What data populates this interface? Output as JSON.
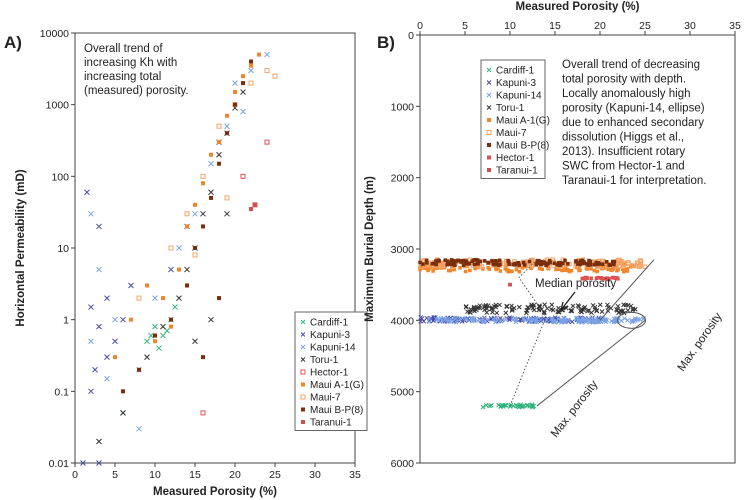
{
  "chart_data": [
    {
      "panel_label": "A)",
      "type": "scatter",
      "xlabel": "Measured Porosity (%)",
      "ylabel": "Horizontal Permeability (mD)",
      "xlim": [
        0,
        35
      ],
      "ylim": [
        0.01,
        10000
      ],
      "yscale": "log",
      "xticks": [
        "0",
        "5",
        "10",
        "15",
        "20",
        "25",
        "30",
        "35"
      ],
      "yticks": [
        "0.01",
        "0.1",
        "1",
        "10",
        "100",
        "1000",
        "10000"
      ],
      "annotation": [
        "Overall trend of",
        "increasing Kh with",
        "increasing total",
        "(measured) porosity."
      ],
      "legend_position": "bottom-right",
      "series": [
        {
          "name": "Cardiff-1",
          "color": "#2fb57c",
          "marker": "x",
          "points": [
            [
              9,
              0.5
            ],
            [
              10,
              0.8
            ],
            [
              11,
              0.6
            ],
            [
              12,
              1
            ],
            [
              10.5,
              0.4
            ],
            [
              11.5,
              0.7
            ],
            [
              9.5,
              0.6
            ],
            [
              12.5,
              1.5
            ]
          ]
        },
        {
          "name": "Kapuni-3",
          "color": "#4a4aa8",
          "marker": "x",
          "points": [
            [
              1.5,
              60
            ],
            [
              2,
              1.5
            ],
            [
              3,
              0.8
            ],
            [
              2.5,
              0.2
            ],
            [
              4,
              2
            ],
            [
              3,
              20
            ],
            [
              5,
              0.5
            ],
            [
              6,
              1
            ],
            [
              2,
              0.1
            ],
            [
              7,
              3
            ],
            [
              4,
              0.3
            ],
            [
              1,
              0.01
            ],
            [
              3,
              0.01
            ],
            [
              12,
              5
            ],
            [
              14,
              20
            ],
            [
              18,
              300
            ]
          ]
        },
        {
          "name": "Kapuni-14",
          "color": "#7aa3e6",
          "marker": "x",
          "points": [
            [
              2,
              30
            ],
            [
              3,
              5
            ],
            [
              2,
              0.5
            ],
            [
              4,
              0.15
            ],
            [
              5,
              1
            ],
            [
              6,
              0.05
            ],
            [
              8,
              0.2
            ],
            [
              10,
              2
            ],
            [
              13,
              10
            ],
            [
              15,
              30
            ],
            [
              17,
              150
            ],
            [
              19,
              500
            ],
            [
              20,
              2000
            ],
            [
              22,
              3000
            ],
            [
              24,
              5000
            ],
            [
              21,
              800
            ],
            [
              3,
              0.02
            ],
            [
              8,
              0.03
            ]
          ]
        },
        {
          "name": "Toru-1",
          "color": "#333333",
          "marker": "x",
          "points": [
            [
              3,
              0.02
            ],
            [
              6,
              0.05
            ],
            [
              9,
              0.3
            ],
            [
              11,
              0.8
            ],
            [
              13,
              2
            ],
            [
              14,
              5
            ],
            [
              15,
              10
            ],
            [
              16,
              30
            ],
            [
              17,
              60
            ],
            [
              18,
              200
            ],
            [
              19,
              400
            ],
            [
              20,
              900
            ],
            [
              21,
              1500
            ],
            [
              17,
              1
            ],
            [
              15,
              0.5
            ],
            [
              19,
              30
            ]
          ]
        },
        {
          "name": "Hector-1",
          "color": "#e05050",
          "marker": "open-square",
          "points": [
            [
              21,
              100
            ],
            [
              22.5,
              40
            ],
            [
              24,
              300
            ],
            [
              16,
              0.05
            ]
          ]
        },
        {
          "name": "Maui A-1(G)",
          "color": "#f0862c",
          "marker": "square",
          "points": [
            [
              5,
              0.3
            ],
            [
              7,
              1
            ],
            [
              9,
              3
            ],
            [
              11,
              2
            ],
            [
              13,
              5
            ],
            [
              14,
              20
            ],
            [
              15,
              40
            ],
            [
              16,
              80
            ],
            [
              17,
              200
            ],
            [
              18,
              300
            ],
            [
              19,
              700
            ],
            [
              20,
              1500
            ],
            [
              21,
              2500
            ],
            [
              22,
              3500
            ],
            [
              23,
              5000
            ],
            [
              12,
              0.8
            ],
            [
              10,
              0.5
            ]
          ]
        },
        {
          "name": "Maui-7",
          "color": "#f2a466",
          "marker": "open-square",
          "points": [
            [
              8,
              2
            ],
            [
              12,
              10
            ],
            [
              14,
              30
            ],
            [
              16,
              100
            ],
            [
              18,
              500
            ],
            [
              20,
              1000
            ],
            [
              22,
              2000
            ],
            [
              24,
              3000
            ],
            [
              25,
              2500
            ],
            [
              19,
              50
            ],
            [
              15,
              8
            ]
          ]
        },
        {
          "name": "Maui B-P(8)",
          "color": "#7a2e0e",
          "marker": "square",
          "points": [
            [
              6,
              0.1
            ],
            [
              8,
              0.2
            ],
            [
              10,
              0.6
            ],
            [
              12,
              1
            ],
            [
              14,
              3
            ],
            [
              15,
              10
            ],
            [
              16,
              20
            ],
            [
              17,
              50
            ],
            [
              18,
              150
            ],
            [
              19,
              400
            ],
            [
              20,
              1000
            ],
            [
              21,
              2000
            ],
            [
              22,
              4000
            ],
            [
              16,
              0.3
            ],
            [
              18,
              2
            ]
          ]
        },
        {
          "name": "Taranui-1",
          "color": "#d0504f",
          "marker": "square",
          "points": [
            [
              22.5,
              40
            ],
            [
              22,
              35
            ]
          ]
        }
      ]
    },
    {
      "panel_label": "B)",
      "type": "scatter",
      "xlabel": "Measured Porosity (%)",
      "ylabel": "Maximum Burial Depth (m)",
      "xlim": [
        0,
        35
      ],
      "ylim": [
        0,
        6000
      ],
      "yreversed": true,
      "xticks": [
        "0",
        "5",
        "10",
        "15",
        "20",
        "25",
        "30",
        "35"
      ],
      "yticks": [
        "0",
        "1000",
        "2000",
        "3000",
        "4000",
        "5000",
        "6000"
      ],
      "annotation": [
        "Overall trend of decreasing",
        "total porosity with depth.",
        "Locally anomalously high",
        "porosity (Kapuni-14, ellipse)",
        "due to enhanced secondary",
        "dissolution (Higgs et al.,",
        "2013). Insufficient rotary",
        "SWC from Hector-1 and",
        "Taranaui-1 for interpretation."
      ],
      "labels": {
        "median": "Median porosity",
        "max1": "Max. porosity",
        "max2": "Max. porosity"
      },
      "legend_position": "top-left",
      "series": [
        {
          "name": "Cardiff-1",
          "color": "#2fb57c",
          "marker": "x",
          "depth": [
            5180,
            5220
          ],
          "porosity_range": [
            7,
            13
          ]
        },
        {
          "name": "Kapuni-3",
          "color": "#4a4aa8",
          "marker": "x",
          "depth": [
            3960,
            4020
          ],
          "porosity_range": [
            0,
            20
          ]
        },
        {
          "name": "Kapuni-14",
          "color": "#7aa3e6",
          "marker": "x",
          "depth": [
            3970,
            4030
          ],
          "porosity_range": [
            1,
            25
          ]
        },
        {
          "name": "Toru-1",
          "color": "#333333",
          "marker": "x",
          "depth": [
            3780,
            3900
          ],
          "porosity_range": [
            5,
            24
          ]
        },
        {
          "name": "Maui A-1(G)",
          "color": "#f0862c",
          "marker": "square",
          "depth": [
            3200,
            3320
          ],
          "porosity_range": [
            0,
            24
          ]
        },
        {
          "name": "Maui-7",
          "color": "#f2a466",
          "marker": "open-square",
          "depth": [
            3150,
            3250
          ],
          "porosity_range": [
            0,
            25
          ]
        },
        {
          "name": "Maui B-P(8)",
          "color": "#7a2e0e",
          "marker": "square",
          "depth": [
            3150,
            3230
          ],
          "porosity_range": [
            0,
            22
          ]
        },
        {
          "name": "Hector-1",
          "color": "#e05050",
          "marker": "square",
          "depth": [
            3400,
            3420
          ],
          "porosity_range": [
            18,
            22
          ]
        },
        {
          "name": "Taranui-1",
          "color": "#d0504f",
          "marker": "square",
          "depth": [
            3500,
            3500
          ],
          "porosity_range": [
            10,
            10
          ]
        }
      ]
    }
  ]
}
